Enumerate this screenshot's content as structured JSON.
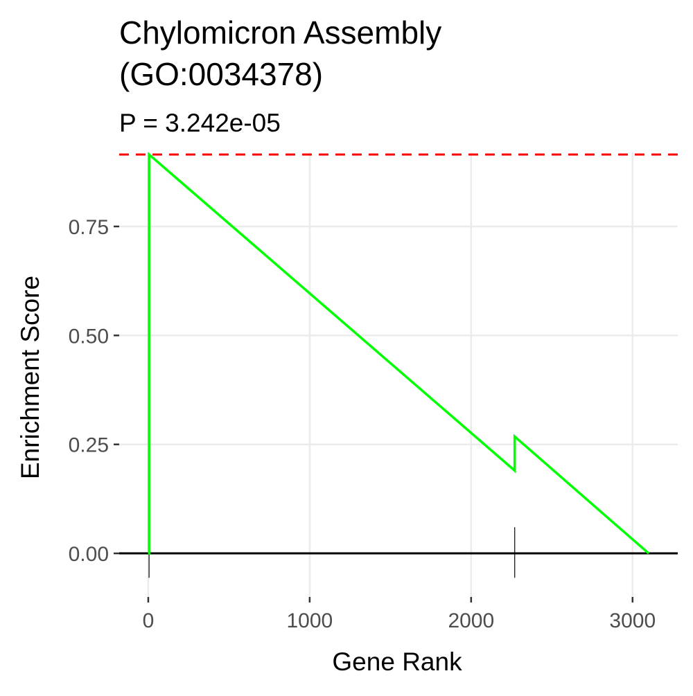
{
  "chart_data": {
    "type": "line",
    "title_lines": [
      "Chylomicron Assembly",
      "(GO:0034378)"
    ],
    "subtitle": "P = 3.242e-05",
    "xlabel": "Gene Rank",
    "ylabel": "Enrichment Score",
    "xlim": [
      -180,
      3280
    ],
    "ylim": [
      -0.1,
      0.92
    ],
    "x_ticks": [
      0,
      1000,
      2000,
      3000
    ],
    "x_tick_labels": [
      "0",
      "1000",
      "2000",
      "3000"
    ],
    "y_ticks": [
      0,
      0.25,
      0.5,
      0.75
    ],
    "y_tick_labels": [
      "0.00",
      "0.25",
      "0.50",
      "0.75"
    ],
    "grid": true,
    "series": [
      {
        "color": "#00ff00",
        "x": [
          0,
          5,
          5,
          2270,
          2270,
          3100
        ],
        "y": [
          0,
          0,
          0.915,
          0.19,
          0.268,
          0
        ]
      }
    ],
    "max_es_line": {
      "y": 0.915,
      "color": "#ff0000",
      "style": "dashed"
    },
    "zero_line": {
      "y": 0,
      "color": "#000000"
    },
    "hit_ticks": [
      5,
      2270
    ]
  }
}
